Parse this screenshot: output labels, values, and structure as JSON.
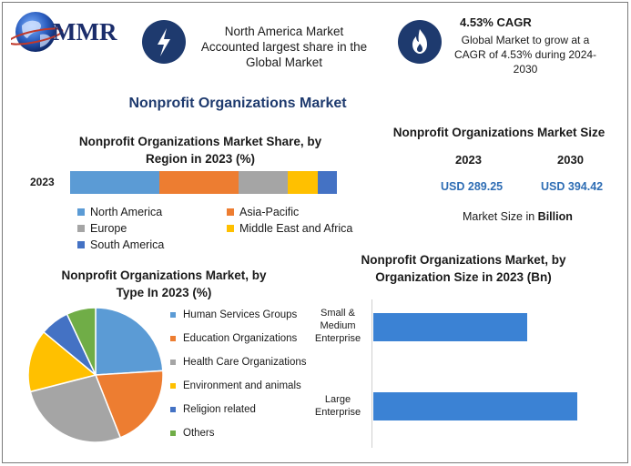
{
  "brand": {
    "logo_text": "MMR"
  },
  "header": {
    "box1_text_lines": [
      "North America Market",
      "Accounted largest share in the",
      "Global Market"
    ],
    "box2_title": "4.53% CAGR",
    "box2_text_lines": [
      "Global Market to grow at a",
      "CAGR of 4.53% during 2024-",
      "2030"
    ]
  },
  "main_title": "Nonprofit Organizations Market",
  "market_size": {
    "title": "Nonprofit Organizations Market Size",
    "year1": "2023",
    "year2": "2030",
    "value1": "USD 289.25",
    "value2": "USD 394.42",
    "note_prefix": "Market Size in ",
    "note_unit": "Billion"
  },
  "colors": {
    "blue_light": "#5b9bd5",
    "orange": "#ed7d31",
    "gray": "#a5a5a5",
    "yellow": "#ffc000",
    "blue_dark": "#4472c4",
    "green": "#70ad47",
    "bar_blue": "#3b82d4",
    "navy": "#1e3a6e"
  },
  "chart_data": [
    {
      "type": "bar",
      "stacked": true,
      "orientation": "horizontal",
      "title_lines": [
        "Nonprofit Organizations Market Share, by",
        "Region in 2023 (%)"
      ],
      "categories": [
        "2023"
      ],
      "series": [
        {
          "name": "North America",
          "values": [
            33.5
          ],
          "color": "#5b9bd5"
        },
        {
          "name": "Asia-Pacific",
          "values": [
            29.5
          ],
          "color": "#ed7d31"
        },
        {
          "name": "Europe",
          "values": [
            18.5
          ],
          "color": "#a5a5a5"
        },
        {
          "name": "Middle East and Africa",
          "values": [
            11.5
          ],
          "color": "#ffc000"
        },
        {
          "name": "South America",
          "values": [
            7
          ],
          "color": "#4472c4"
        }
      ],
      "legend": "bottom"
    },
    {
      "type": "pie",
      "title_lines": [
        "Nonprofit Organizations Market, by",
        "Type In 2023 (%)"
      ],
      "slices": [
        {
          "name": "Human Services Groups",
          "value": 24,
          "color": "#5b9bd5"
        },
        {
          "name": "Education Organizations",
          "value": 20,
          "color": "#ed7d31"
        },
        {
          "name": "Health Care Organizations",
          "value": 27,
          "color": "#a5a5a5"
        },
        {
          "name": "Environment and animals",
          "value": 15,
          "color": "#ffc000"
        },
        {
          "name": "Religion related",
          "value": 7,
          "color": "#4472c4"
        },
        {
          "name": "Others",
          "value": 7,
          "color": "#70ad47"
        }
      ],
      "legend": "right"
    },
    {
      "type": "bar",
      "orientation": "horizontal",
      "title_lines": [
        "Nonprofit Organizations Market, by",
        "Organization Size in 2023 (Bn)"
      ],
      "categories": [
        {
          "lines": [
            "Small &",
            "Medium",
            "Enterprise"
          ]
        },
        {
          "lines": [
            "Large",
            "Enterprise"
          ]
        }
      ],
      "values": [
        125,
        165
      ],
      "xlim": [
        0,
        180
      ],
      "color": "#3b82d4"
    }
  ]
}
